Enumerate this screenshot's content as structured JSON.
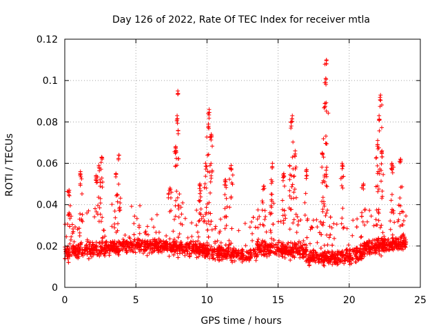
{
  "chart_data": {
    "type": "scatter",
    "title": "Day 126 of 2022, Rate Of TEC Index for receiver mtla",
    "xlabel": "GPS time / hours",
    "ylabel": "ROTI / TECUs",
    "xlim": [
      0,
      25
    ],
    "ylim": [
      0,
      0.12
    ],
    "x_ticks": [
      "0",
      "5",
      "10",
      "15",
      "20",
      "25"
    ],
    "y_ticks": [
      "0",
      "0.02",
      "0.04",
      "0.06",
      "0.08",
      "0.1",
      "0.12"
    ],
    "grid": true,
    "marker": "plus",
    "color": "#ff0000",
    "series": [
      {
        "name": "ROTI",
        "description_points": "dense band of values between about 0.005 and 0.035 TECU across 0 to 24 hours with sparse spikes",
        "peaks": [
          {
            "x": 0.3,
            "y": 0.047
          },
          {
            "x": 1.1,
            "y": 0.056
          },
          {
            "x": 2.2,
            "y": 0.054
          },
          {
            "x": 2.4,
            "y": 0.059
          },
          {
            "x": 2.6,
            "y": 0.063
          },
          {
            "x": 3.6,
            "y": 0.055
          },
          {
            "x": 3.8,
            "y": 0.064
          },
          {
            "x": 7.4,
            "y": 0.048
          },
          {
            "x": 7.8,
            "y": 0.068
          },
          {
            "x": 7.9,
            "y": 0.083
          },
          {
            "x": 7.95,
            "y": 0.095
          },
          {
            "x": 9.5,
            "y": 0.05
          },
          {
            "x": 9.9,
            "y": 0.06
          },
          {
            "x": 10.1,
            "y": 0.079
          },
          {
            "x": 10.15,
            "y": 0.086
          },
          {
            "x": 10.3,
            "y": 0.074
          },
          {
            "x": 11.3,
            "y": 0.052
          },
          {
            "x": 11.7,
            "y": 0.059
          },
          {
            "x": 14.0,
            "y": 0.049
          },
          {
            "x": 14.6,
            "y": 0.06
          },
          {
            "x": 15.4,
            "y": 0.055
          },
          {
            "x": 15.9,
            "y": 0.08
          },
          {
            "x": 16.0,
            "y": 0.083
          },
          {
            "x": 16.2,
            "y": 0.066
          },
          {
            "x": 17.0,
            "y": 0.057
          },
          {
            "x": 18.1,
            "y": 0.065
          },
          {
            "x": 18.3,
            "y": 0.089
          },
          {
            "x": 18.35,
            "y": 0.101
          },
          {
            "x": 18.4,
            "y": 0.11
          },
          {
            "x": 19.5,
            "y": 0.06
          },
          {
            "x": 21.0,
            "y": 0.05
          },
          {
            "x": 22.0,
            "y": 0.071
          },
          {
            "x": 22.1,
            "y": 0.083
          },
          {
            "x": 22.2,
            "y": 0.093
          },
          {
            "x": 22.3,
            "y": 0.066
          },
          {
            "x": 23.0,
            "y": 0.06
          },
          {
            "x": 23.6,
            "y": 0.062
          }
        ]
      }
    ]
  }
}
